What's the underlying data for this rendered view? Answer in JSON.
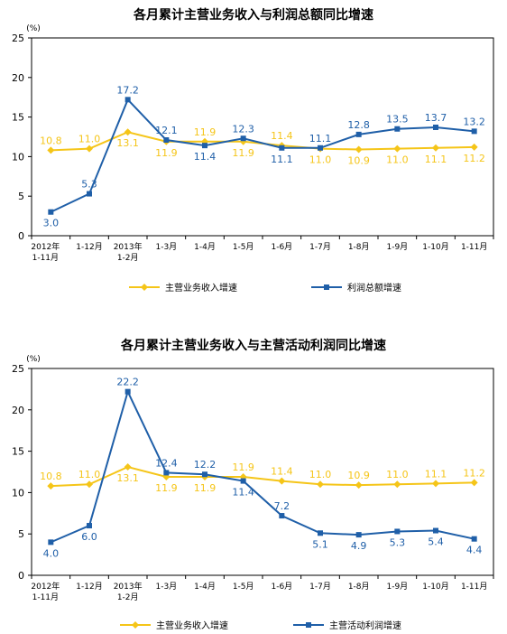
{
  "chart_data": [
    {
      "type": "line",
      "title": "各月累计主营业务收入与利润总额同比增速",
      "ylabel": "(%)",
      "ylim": [
        0,
        25
      ],
      "yticks": [
        0,
        5,
        10,
        15,
        20,
        25
      ],
      "grid": false,
      "legend": "bottom",
      "categories": [
        [
          "2012年",
          "1-11月"
        ],
        [
          "1-12月"
        ],
        [
          "2013年",
          "1-2月"
        ],
        [
          "1-3月"
        ],
        [
          "1-4月"
        ],
        [
          "1-5月"
        ],
        [
          "1-6月"
        ],
        [
          "1-7月"
        ],
        [
          "1-8月"
        ],
        [
          "1-9月"
        ],
        [
          "1-10月"
        ],
        [
          "1-11月"
        ]
      ],
      "series": [
        {
          "name": "主营业务收入增速",
          "color": "#f5c518",
          "marker": "diamond",
          "values": [
            10.8,
            11.0,
            13.1,
            11.9,
            11.9,
            11.9,
            11.4,
            11.0,
            10.9,
            11.0,
            11.1,
            11.2
          ],
          "labels": [
            "10.8",
            "11.0",
            "13.1",
            "11.9",
            "11.9",
            "11.9",
            "11.4",
            "11.0",
            "10.9",
            "11.0",
            "11.1",
            "11.2"
          ]
        },
        {
          "name": "利润总额增速",
          "color": "#1f5fa8",
          "marker": "square",
          "values": [
            3.0,
            5.3,
            17.2,
            12.1,
            11.4,
            12.3,
            11.1,
            11.1,
            12.8,
            13.5,
            13.7,
            13.2
          ],
          "labels": [
            "3.0",
            "5.3",
            "17.2",
            "12.1",
            "11.4",
            "12.3",
            "11.1",
            "11.1",
            "12.8",
            "13.5",
            "13.7",
            "13.2"
          ]
        }
      ]
    },
    {
      "type": "line",
      "title": "各月累计主营业务收入与主营活动利润同比增速",
      "ylabel": "(%)",
      "ylim": [
        0,
        25
      ],
      "yticks": [
        0,
        5,
        10,
        15,
        20,
        25
      ],
      "grid": false,
      "legend": "bottom",
      "categories": [
        [
          "2012年",
          "1-11月"
        ],
        [
          "1-12月"
        ],
        [
          "2013年",
          "1-2月"
        ],
        [
          "1-3月"
        ],
        [
          "1-4月"
        ],
        [
          "1-5月"
        ],
        [
          "1-6月"
        ],
        [
          "1-7月"
        ],
        [
          "1-8月"
        ],
        [
          "1-9月"
        ],
        [
          "1-10月"
        ],
        [
          "1-11月"
        ]
      ],
      "series": [
        {
          "name": "主营业务收入增速",
          "color": "#f5c518",
          "marker": "diamond",
          "values": [
            10.8,
            11.0,
            13.1,
            11.9,
            11.9,
            11.9,
            11.4,
            11.0,
            10.9,
            11.0,
            11.1,
            11.2
          ],
          "labels": [
            "10.8",
            "11.0",
            "13.1",
            "11.9",
            "11.9",
            "11.9",
            "11.4",
            "11.0",
            "10.9",
            "11.0",
            "11.1",
            "11.2"
          ]
        },
        {
          "name": "主营活动利润增速",
          "color": "#1f5fa8",
          "marker": "square",
          "values": [
            4.0,
            6.0,
            22.2,
            12.4,
            12.2,
            11.4,
            7.2,
            5.1,
            4.9,
            5.3,
            5.4,
            4.4
          ],
          "labels": [
            "4.0",
            "6.0",
            "22.2",
            "12.4",
            "12.2",
            "11.4",
            "7.2",
            "5.1",
            "4.9",
            "5.3",
            "5.4",
            "4.4"
          ]
        }
      ]
    }
  ]
}
